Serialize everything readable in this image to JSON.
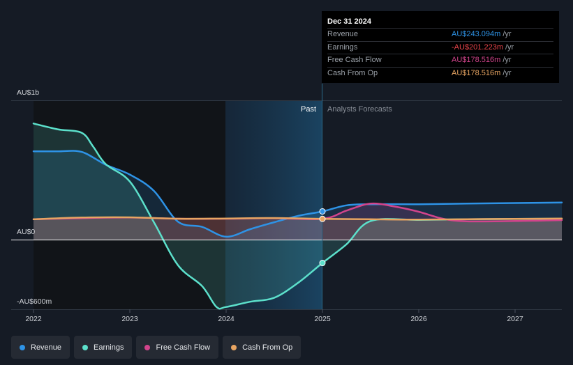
{
  "chart_data": {
    "type": "line",
    "y_axis_labels": {
      "top": "AU$1b",
      "zero": "AU$0",
      "bottom": "-AU$600m"
    },
    "ylim": [
      -600,
      1000
    ],
    "xlim": [
      2022,
      2027.5
    ],
    "x_ticks": [
      "2022",
      "2023",
      "2024",
      "2025",
      "2026",
      "2027"
    ],
    "regions": {
      "past_label": "Past",
      "forecast_label": "Analysts Forecasts",
      "divider_x": 2025.0
    },
    "series": [
      {
        "name": "Revenue",
        "color": "#2e93e6",
        "points": [
          [
            2022.0,
            760
          ],
          [
            2022.25,
            760
          ],
          [
            2022.5,
            755
          ],
          [
            2022.75,
            645
          ],
          [
            2023.0,
            560
          ],
          [
            2023.25,
            420
          ],
          [
            2023.5,
            155
          ],
          [
            2023.75,
            110
          ],
          [
            2024.0,
            25
          ],
          [
            2024.25,
            90
          ],
          [
            2024.5,
            150
          ],
          [
            2024.75,
            205
          ],
          [
            2025.0,
            243
          ],
          [
            2025.25,
            295
          ],
          [
            2025.5,
            305
          ],
          [
            2026.0,
            305
          ],
          [
            2026.5,
            310
          ],
          [
            2027.0,
            315
          ],
          [
            2027.5,
            320
          ]
        ]
      },
      {
        "name": "Earnings",
        "color": "#5ce0cb",
        "points": [
          [
            2022.0,
            1000
          ],
          [
            2022.25,
            950
          ],
          [
            2022.5,
            920
          ],
          [
            2022.62,
            800
          ],
          [
            2022.75,
            650
          ],
          [
            2023.0,
            500
          ],
          [
            2023.25,
            150
          ],
          [
            2023.5,
            -220
          ],
          [
            2023.75,
            -400
          ],
          [
            2023.9,
            -580
          ],
          [
            2024.0,
            -580
          ],
          [
            2024.25,
            -535
          ],
          [
            2024.5,
            -500
          ],
          [
            2024.75,
            -370
          ],
          [
            2025.0,
            -201
          ],
          [
            2025.25,
            -40
          ],
          [
            2025.5,
            160
          ],
          [
            2026.0,
            170
          ],
          [
            2026.5,
            175
          ],
          [
            2027.0,
            178
          ],
          [
            2027.5,
            180
          ]
        ]
      },
      {
        "name": "Free Cash Flow",
        "color": "#d2448c",
        "points": [
          [
            2022.0,
            175
          ],
          [
            2022.5,
            185
          ],
          [
            2023.0,
            190
          ],
          [
            2023.5,
            180
          ],
          [
            2024.0,
            180
          ],
          [
            2024.5,
            185
          ],
          [
            2025.0,
            178.5
          ],
          [
            2025.25,
            250
          ],
          [
            2025.5,
            310
          ],
          [
            2025.75,
            285
          ],
          [
            2026.0,
            240
          ],
          [
            2026.25,
            180
          ],
          [
            2026.5,
            158
          ],
          [
            2027.0,
            160
          ],
          [
            2027.5,
            168
          ]
        ]
      },
      {
        "name": "Cash From Op",
        "color": "#e8a562",
        "points": [
          [
            2022.0,
            175
          ],
          [
            2022.5,
            190
          ],
          [
            2023.0,
            192
          ],
          [
            2023.5,
            180
          ],
          [
            2024.0,
            182
          ],
          [
            2024.5,
            186
          ],
          [
            2025.0,
            178.5
          ],
          [
            2025.5,
            175
          ],
          [
            2026.0,
            172
          ],
          [
            2026.5,
            176
          ],
          [
            2027.0,
            178
          ],
          [
            2027.5,
            182
          ]
        ]
      }
    ],
    "highlight": {
      "x": 2025.0,
      "revenue": 243.094,
      "earnings": -201.223,
      "free_cash_flow": 178.516,
      "cash_from_op": 178.516
    }
  },
  "tooltip": {
    "title": "Dec 31 2024",
    "unit": "/yr",
    "rows": [
      {
        "label": "Revenue",
        "value": "AU$243.094m",
        "color": "#2e93e6"
      },
      {
        "label": "Earnings",
        "value": "-AU$201.223m",
        "color": "#e8444a"
      },
      {
        "label": "Free Cash Flow",
        "value": "AU$178.516m",
        "color": "#d2448c"
      },
      {
        "label": "Cash From Op",
        "value": "AU$178.516m",
        "color": "#e8a562"
      }
    ]
  },
  "legend": [
    {
      "label": "Revenue",
      "color": "#2e93e6"
    },
    {
      "label": "Earnings",
      "color": "#5ce0cb"
    },
    {
      "label": "Free Cash Flow",
      "color": "#d2448c"
    },
    {
      "label": "Cash From Op",
      "color": "#e8a562"
    }
  ]
}
